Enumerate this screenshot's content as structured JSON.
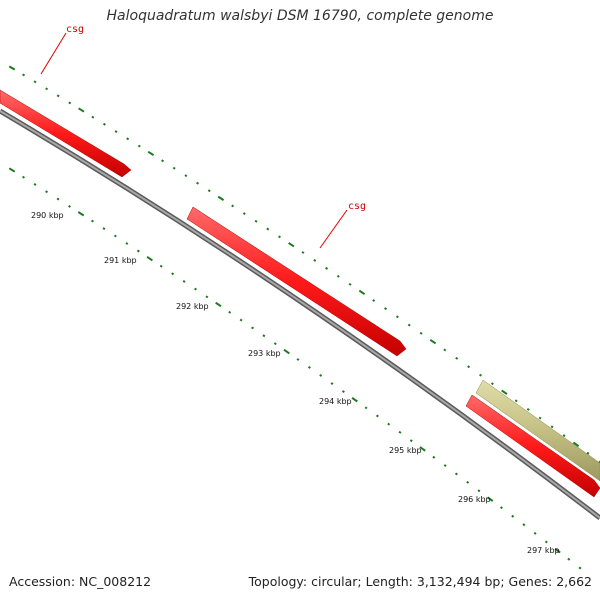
{
  "title": "Haloquadratum walsbyi DSM 16790, complete genome",
  "footer": {
    "accession": "Accession: NC_008212",
    "stats": "Topology: circular; Length: 3,132,494 bp; Genes: 2,662"
  },
  "colors": {
    "backbone": "#808080",
    "forward_gene": "#ff1a1a",
    "other_feature": "#c4c084",
    "tick": "#1e7a1e",
    "gene_label": "#cc0000"
  },
  "scale_labels": [
    "290 kbp",
    "291 kbp",
    "292 kbp",
    "293 kbp",
    "294 kbp",
    "295 kbp",
    "296 kbp",
    "297 kbp"
  ],
  "genes": [
    {
      "label": "csg",
      "color": "forward_gene"
    },
    {
      "label": "csg",
      "color": "forward_gene"
    },
    {
      "label": "",
      "color": "forward_gene"
    },
    {
      "label": "",
      "color": "other_feature"
    }
  ]
}
